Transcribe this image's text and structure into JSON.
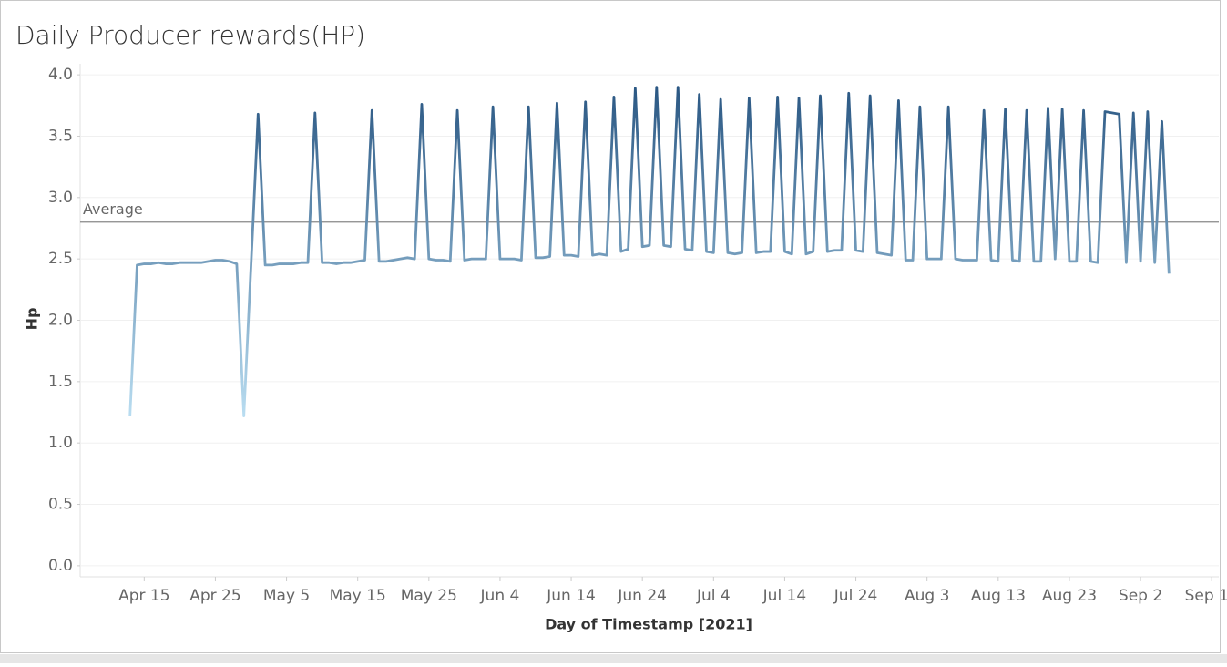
{
  "chart_data": {
    "type": "line",
    "title": "Daily Producer rewards(HP)",
    "x_label": "Day of Timestamp [2021]",
    "y_label": "Hp",
    "xlim": [
      "2021-04-06",
      "2021-09-13"
    ],
    "ylim": [
      -0.09,
      4.09
    ],
    "yticks": [
      {
        "value": 0,
        "label": "0.0"
      },
      0.5,
      {
        "value": 1,
        "label": "1.0"
      },
      1.5,
      {
        "value": 2,
        "label": "2.0"
      },
      2.5,
      {
        "value": 3,
        "label": "3.0"
      },
      3.5,
      {
        "value": 4,
        "label": "4.0"
      }
    ],
    "xticks": [
      {
        "value": "2021-04-15",
        "label": "Apr 15"
      },
      {
        "value": "2021-04-25",
        "label": "Apr 25"
      },
      {
        "value": "2021-05-05",
        "label": "May 5"
      },
      {
        "value": "2021-05-15",
        "label": "May 15"
      },
      {
        "value": "2021-05-25",
        "label": "May 25"
      },
      {
        "value": "2021-06-04",
        "label": "Jun 4"
      },
      {
        "value": "2021-06-14",
        "label": "Jun 14"
      },
      {
        "value": "2021-06-24",
        "label": "Jun 24"
      },
      {
        "value": "2021-07-04",
        "label": "Jul 4"
      },
      {
        "value": "2021-07-14",
        "label": "Jul 14"
      },
      {
        "value": "2021-07-24",
        "label": "Jul 24"
      },
      {
        "value": "2021-08-03",
        "label": "Aug 3"
      },
      {
        "value": "2021-08-13",
        "label": "Aug 13"
      },
      {
        "value": "2021-08-23",
        "label": "Aug 23"
      },
      {
        "value": "2021-09-02",
        "label": "Sep 2"
      },
      {
        "value": "2021-09-12",
        "label": "Sep 12"
      }
    ],
    "grid": true,
    "color_range": [
      "#b9ddf1",
      "#2a5783"
    ],
    "reference_line": {
      "label": "Average",
      "value": 2.8,
      "color": "#888888"
    },
    "x": [
      "2021-04-13",
      "2021-04-14",
      "2021-04-15",
      "2021-04-16",
      "2021-04-17",
      "2021-04-18",
      "2021-04-19",
      "2021-04-20",
      "2021-04-21",
      "2021-04-22",
      "2021-04-23",
      "2021-04-24",
      "2021-04-25",
      "2021-04-26",
      "2021-04-27",
      "2021-04-28",
      "2021-04-29",
      "2021-04-30",
      "2021-05-01",
      "2021-05-02",
      "2021-05-03",
      "2021-05-04",
      "2021-05-05",
      "2021-05-06",
      "2021-05-07",
      "2021-05-08",
      "2021-05-09",
      "2021-05-10",
      "2021-05-11",
      "2021-05-12",
      "2021-05-13",
      "2021-05-14",
      "2021-05-15",
      "2021-05-16",
      "2021-05-17",
      "2021-05-18",
      "2021-05-19",
      "2021-05-20",
      "2021-05-21",
      "2021-05-22",
      "2021-05-23",
      "2021-05-24",
      "2021-05-25",
      "2021-05-26",
      "2021-05-27",
      "2021-05-28",
      "2021-05-29",
      "2021-05-30",
      "2021-05-31",
      "2021-06-01",
      "2021-06-02",
      "2021-06-03",
      "2021-06-04",
      "2021-06-05",
      "2021-06-06",
      "2021-06-07",
      "2021-06-08",
      "2021-06-09",
      "2021-06-10",
      "2021-06-11",
      "2021-06-12",
      "2021-06-13",
      "2021-06-14",
      "2021-06-15",
      "2021-06-16",
      "2021-06-17",
      "2021-06-18",
      "2021-06-19",
      "2021-06-20",
      "2021-06-21",
      "2021-06-22",
      "2021-06-23",
      "2021-06-24",
      "2021-06-25",
      "2021-06-26",
      "2021-06-27",
      "2021-06-28",
      "2021-06-29",
      "2021-06-30",
      "2021-07-01",
      "2021-07-02",
      "2021-07-03",
      "2021-07-04",
      "2021-07-05",
      "2021-07-06",
      "2021-07-07",
      "2021-07-08",
      "2021-07-09",
      "2021-07-10",
      "2021-07-11",
      "2021-07-12",
      "2021-07-13",
      "2021-07-14",
      "2021-07-15",
      "2021-07-16",
      "2021-07-17",
      "2021-07-18",
      "2021-07-19",
      "2021-07-20",
      "2021-07-21",
      "2021-07-22",
      "2021-07-23",
      "2021-07-24",
      "2021-07-25",
      "2021-07-26",
      "2021-07-27",
      "2021-07-28",
      "2021-07-29",
      "2021-07-30",
      "2021-07-31",
      "2021-08-01",
      "2021-08-02",
      "2021-08-03",
      "2021-08-04",
      "2021-08-05",
      "2021-08-06",
      "2021-08-07",
      "2021-08-08",
      "2021-08-09",
      "2021-08-10",
      "2021-08-11",
      "2021-08-12",
      "2021-08-13",
      "2021-08-14",
      "2021-08-15",
      "2021-08-16",
      "2021-08-17",
      "2021-08-18",
      "2021-08-19",
      "2021-08-20",
      "2021-08-21",
      "2021-08-22",
      "2021-08-23",
      "2021-08-24",
      "2021-08-25",
      "2021-08-26",
      "2021-08-27",
      "2021-08-28",
      "2021-08-29",
      "2021-08-30",
      "2021-08-31",
      "2021-09-01",
      "2021-09-02",
      "2021-09-03",
      "2021-09-04",
      "2021-09-05",
      "2021-09-06"
    ],
    "values": [
      1.22,
      2.45,
      2.46,
      2.46,
      2.47,
      2.46,
      2.46,
      2.47,
      2.47,
      2.47,
      2.47,
      2.48,
      2.49,
      2.49,
      2.48,
      2.46,
      1.22,
      2.44,
      3.68,
      2.45,
      2.45,
      2.46,
      2.46,
      2.46,
      2.47,
      2.47,
      3.69,
      2.47,
      2.47,
      2.46,
      2.47,
      2.47,
      2.48,
      2.49,
      3.71,
      2.48,
      2.48,
      2.49,
      2.5,
      2.51,
      2.5,
      3.76,
      2.5,
      2.49,
      2.49,
      2.48,
      3.71,
      2.49,
      2.5,
      2.5,
      2.5,
      3.74,
      2.5,
      2.5,
      2.5,
      2.49,
      3.74,
      2.51,
      2.51,
      2.52,
      3.77,
      2.53,
      2.53,
      2.52,
      3.78,
      2.53,
      2.54,
      2.53,
      3.82,
      2.56,
      2.58,
      3.89,
      2.6,
      2.61,
      3.9,
      2.61,
      2.6,
      3.9,
      2.58,
      2.57,
      3.84,
      2.56,
      2.55,
      3.8,
      2.55,
      2.54,
      2.55,
      3.81,
      2.55,
      2.56,
      2.56,
      3.82,
      2.56,
      2.54,
      3.81,
      2.54,
      2.56,
      3.83,
      2.56,
      2.57,
      2.57,
      3.85,
      2.57,
      2.56,
      3.83,
      2.55,
      2.54,
      2.53,
      3.79,
      2.49,
      2.49,
      3.74,
      2.5,
      2.5,
      2.5,
      3.74,
      2.5,
      2.49,
      2.49,
      2.49,
      3.71,
      2.49,
      2.48,
      3.72,
      2.49,
      2.48,
      3.71,
      2.48,
      2.48,
      3.73,
      2.5,
      3.72,
      2.48,
      2.48,
      3.71,
      2.48,
      2.47,
      3.7,
      3.69,
      3.68,
      2.47,
      3.69,
      2.48,
      3.7,
      2.47,
      3.62,
      2.38
    ]
  }
}
